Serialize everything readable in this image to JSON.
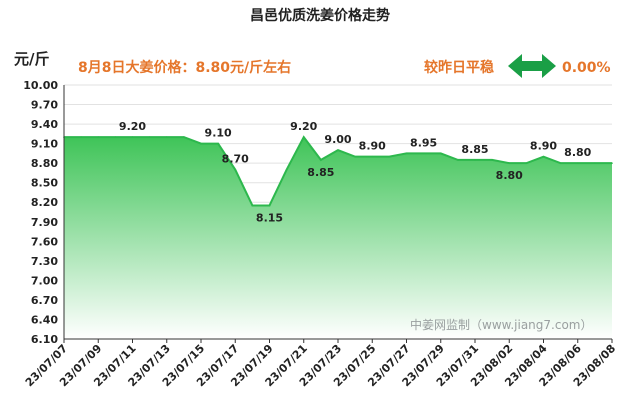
{
  "chart_data": {
    "type": "area",
    "title": "昌邑优质洗姜价格走势",
    "ylabel": "元/斤",
    "headline": "8月8日大姜价格：8.80元/斤左右",
    "change_label": "较昨日平稳",
    "change_value": "0.00%",
    "watermark": "中姜网监制（www.jiang7.com）",
    "ylim": [
      6.1,
      10.0
    ],
    "yticks": [
      "6.10",
      "6.40",
      "6.70",
      "7.00",
      "7.30",
      "7.60",
      "7.90",
      "8.20",
      "8.50",
      "8.80",
      "9.10",
      "9.40",
      "9.70",
      "10.00"
    ],
    "x": [
      "23/07/07",
      "23/07/08",
      "23/07/09",
      "23/07/10",
      "23/07/11",
      "23/07/12",
      "23/07/13",
      "23/07/14",
      "23/07/15",
      "23/07/16",
      "23/07/17",
      "23/07/18",
      "23/07/19",
      "23/07/20",
      "23/07/21",
      "23/07/22",
      "23/07/23",
      "23/07/24",
      "23/07/25",
      "23/07/26",
      "23/07/27",
      "23/07/28",
      "23/07/29",
      "23/07/30",
      "23/07/31",
      "23/08/01",
      "23/08/02",
      "23/08/03",
      "23/08/04",
      "23/08/05",
      "23/08/06",
      "23/08/07",
      "23/08/08"
    ],
    "xtick_labels": [
      "23/07/07",
      "23/07/09",
      "23/07/11",
      "23/07/13",
      "23/07/15",
      "23/07/17",
      "23/07/19",
      "23/07/21",
      "23/07/23",
      "23/07/25",
      "23/07/27",
      "23/07/29",
      "23/07/31",
      "23/08/02",
      "23/08/04",
      "23/08/06",
      "23/08/08"
    ],
    "values": [
      9.2,
      9.2,
      9.2,
      9.2,
      9.2,
      9.2,
      9.2,
      9.2,
      9.1,
      9.1,
      8.7,
      8.15,
      8.15,
      8.7,
      9.2,
      8.85,
      9.0,
      8.9,
      8.9,
      8.9,
      8.95,
      8.95,
      8.95,
      8.85,
      8.85,
      8.85,
      8.8,
      8.8,
      8.9,
      8.8,
      8.8,
      8.8,
      8.8
    ],
    "data_labels": [
      {
        "index": 4,
        "text": "9.20"
      },
      {
        "index": 9,
        "text": "9.10"
      },
      {
        "index": 10,
        "text": "8.70"
      },
      {
        "index": 12,
        "text": "8.15"
      },
      {
        "index": 14,
        "text": "9.20"
      },
      {
        "index": 15,
        "text": "8.85"
      },
      {
        "index": 16,
        "text": "9.00"
      },
      {
        "index": 18,
        "text": "8.90"
      },
      {
        "index": 21,
        "text": "8.95"
      },
      {
        "index": 24,
        "text": "8.85"
      },
      {
        "index": 26,
        "text": "8.80"
      },
      {
        "index": 28,
        "text": "8.90"
      },
      {
        "index": 30,
        "text": "8.80"
      }
    ],
    "colors": {
      "line": "#2db84d",
      "fill_top": "#3fc458",
      "fill_bottom": "#ffffff",
      "accent": "#e5762b",
      "arrow": "#1a9f46"
    },
    "grid": true,
    "legend": "none"
  }
}
